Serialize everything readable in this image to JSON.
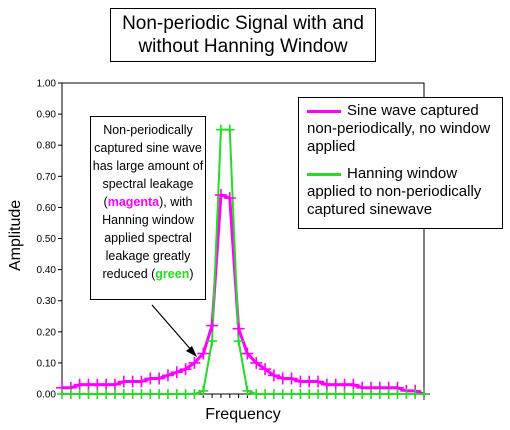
{
  "chart_data": {
    "type": "line",
    "title": "Non-periodic Signal with and without Hanning Window",
    "xlabel": "Frequency",
    "ylabel": "Amplitude",
    "ylim": [
      0,
      1.0
    ],
    "yticks": [
      "0.00",
      "0.10",
      "0.20",
      "0.30",
      "0.40",
      "0.50",
      "0.60",
      "0.70",
      "0.80",
      "0.90",
      "1.00"
    ],
    "x": [
      0,
      1,
      2,
      3,
      4,
      5,
      6,
      7,
      8,
      9,
      10,
      11,
      12,
      13,
      14,
      15,
      16,
      17,
      18,
      19,
      20,
      21,
      22,
      23,
      24,
      25,
      26,
      27,
      28,
      29,
      30,
      31,
      32,
      33,
      34,
      35,
      36,
      37,
      38,
      39,
      40,
      41
    ],
    "series": [
      {
        "name": "Sine wave captured non-periodically, no window applied",
        "color": "#ff00ff",
        "values": [
          0.02,
          0.02,
          0.03,
          0.03,
          0.03,
          0.03,
          0.03,
          0.04,
          0.04,
          0.04,
          0.05,
          0.05,
          0.06,
          0.07,
          0.08,
          0.1,
          0.13,
          0.22,
          0.64,
          0.63,
          0.21,
          0.13,
          0.1,
          0.08,
          0.06,
          0.05,
          0.05,
          0.04,
          0.04,
          0.04,
          0.03,
          0.03,
          0.03,
          0.03,
          0.02,
          0.02,
          0.02,
          0.02,
          0.02,
          0.01,
          0.01,
          0.0
        ]
      },
      {
        "name": "Hanning window applied to non-periodically captured sinewave",
        "color": "#22dd22",
        "values": [
          0.0,
          0.0,
          0.0,
          0.0,
          0.0,
          0.0,
          0.0,
          0.0,
          0.0,
          0.0,
          0.0,
          0.0,
          0.0,
          0.0,
          0.0,
          0.0,
          0.01,
          0.17,
          0.85,
          0.85,
          0.17,
          0.01,
          0.0,
          0.0,
          0.0,
          0.0,
          0.0,
          0.0,
          0.0,
          0.0,
          0.0,
          0.0,
          0.0,
          0.0,
          0.0,
          0.0,
          0.0,
          0.0,
          0.0,
          0.0,
          0.0,
          0.0
        ]
      }
    ],
    "annotation": {
      "text_before_magenta": "Non-periodically captured sine wave has large amount of spectral leakage (",
      "magenta_word": "magenta",
      "text_middle": "), with Hanning window applied spectral leakage greatly reduced (",
      "green_word": "green",
      "text_after": ")"
    },
    "legend_placement": "top-right",
    "grid": false
  }
}
